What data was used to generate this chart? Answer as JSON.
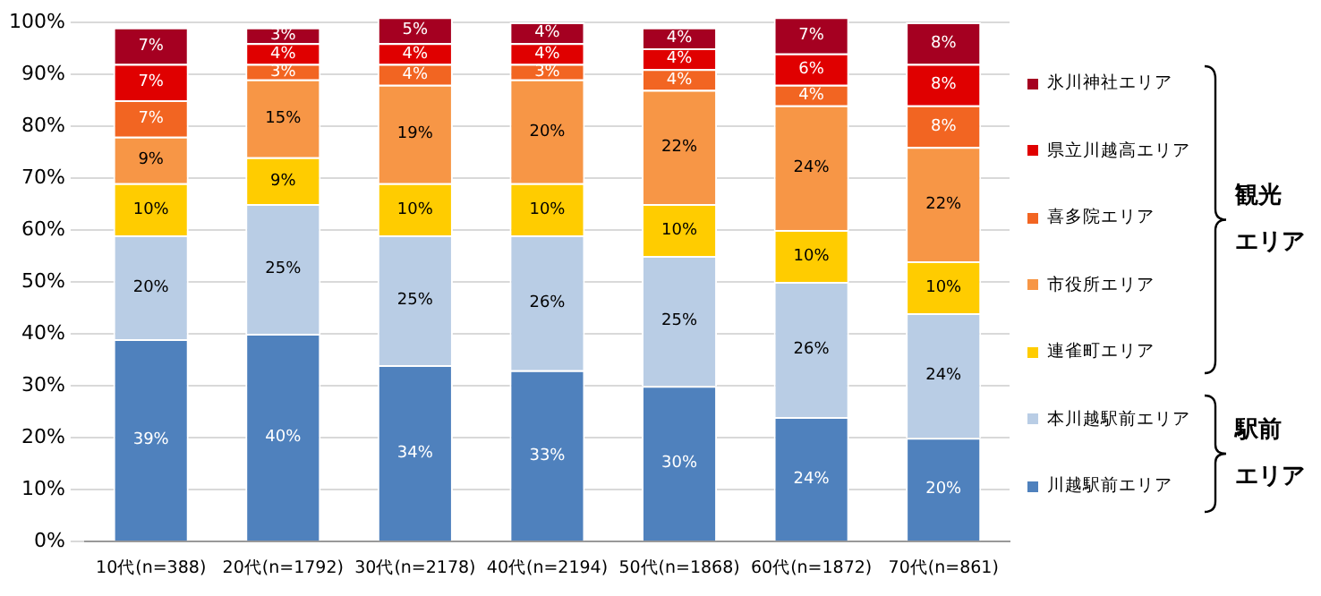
{
  "chart_data": {
    "type": "bar",
    "stacked": true,
    "categories": [
      "10代(n=388)",
      "20代(n=1792)",
      "30代(n=2178)",
      "40代(n=2194)",
      "50代(n=1868)",
      "60代(n=1872)",
      "70代(n=861)"
    ],
    "series": [
      {
        "name": "川越駅前エリア",
        "color": "#4f81bd",
        "values": [
          39,
          40,
          34,
          33,
          30,
          24,
          20
        ],
        "value_labels": [
          "39%",
          "40%",
          "34%",
          "33%",
          "30%",
          "24%",
          "20%"
        ]
      },
      {
        "name": "本川越駅前エリア",
        "color": "#b9cde5",
        "values": [
          20,
          25,
          25,
          26,
          25,
          26,
          24
        ],
        "value_labels": [
          "20%",
          "25%",
          "25%",
          "26%",
          "25%",
          "26%",
          "24%"
        ]
      },
      {
        "name": "連雀町エリア",
        "color": "#ffcc00",
        "values": [
          10,
          9,
          10,
          10,
          10,
          10,
          10
        ],
        "value_labels": [
          "10%",
          "9%",
          "10%",
          "10%",
          "10%",
          "10%",
          "10%"
        ]
      },
      {
        "name": "市役所エリア",
        "color": "#f79646",
        "values": [
          9,
          15,
          19,
          20,
          22,
          24,
          22
        ],
        "value_labels": [
          "9%",
          "15%",
          "19%",
          "20%",
          "22%",
          "24%",
          "22%"
        ]
      },
      {
        "name": "喜多院エリア",
        "color": "#f26522",
        "values": [
          7,
          3,
          4,
          3,
          4,
          4,
          8
        ],
        "value_labels": [
          "7%",
          "3%",
          "4%",
          "3%",
          "4%",
          "4%",
          "8%"
        ]
      },
      {
        "name": "県立川越高エリア",
        "color": "#e00000",
        "values": [
          7,
          4,
          4,
          4,
          4,
          6,
          8
        ],
        "value_labels": [
          "7%",
          "4%",
          "4%",
          "4%",
          "4%",
          "6%",
          "8%"
        ]
      },
      {
        "name": "氷川神社エリア",
        "color": "#a50021",
        "values": [
          7,
          3,
          5,
          4,
          4,
          7,
          8
        ],
        "value_labels": [
          "7%",
          "3%",
          "5%",
          "4%",
          "4%",
          "7%",
          "8%"
        ]
      }
    ],
    "ylim": [
      0,
      101
    ],
    "yticks": [
      {
        "value": 0,
        "label": "0%"
      },
      {
        "value": 10,
        "label": "10%"
      },
      {
        "value": 20,
        "label": "20%"
      },
      {
        "value": 30,
        "label": "30%"
      },
      {
        "value": 40,
        "label": "40%"
      },
      {
        "value": 50,
        "label": "50%"
      },
      {
        "value": 60,
        "label": "60%"
      },
      {
        "value": 70,
        "label": "70%"
      },
      {
        "value": 80,
        "label": "80%"
      },
      {
        "value": 90,
        "label": "90%"
      },
      {
        "value": 100,
        "label": "100%"
      }
    ],
    "grid": "y",
    "legend": "right",
    "annotations": [
      "観光",
      "エリア",
      "駅前",
      "エリア"
    ]
  }
}
